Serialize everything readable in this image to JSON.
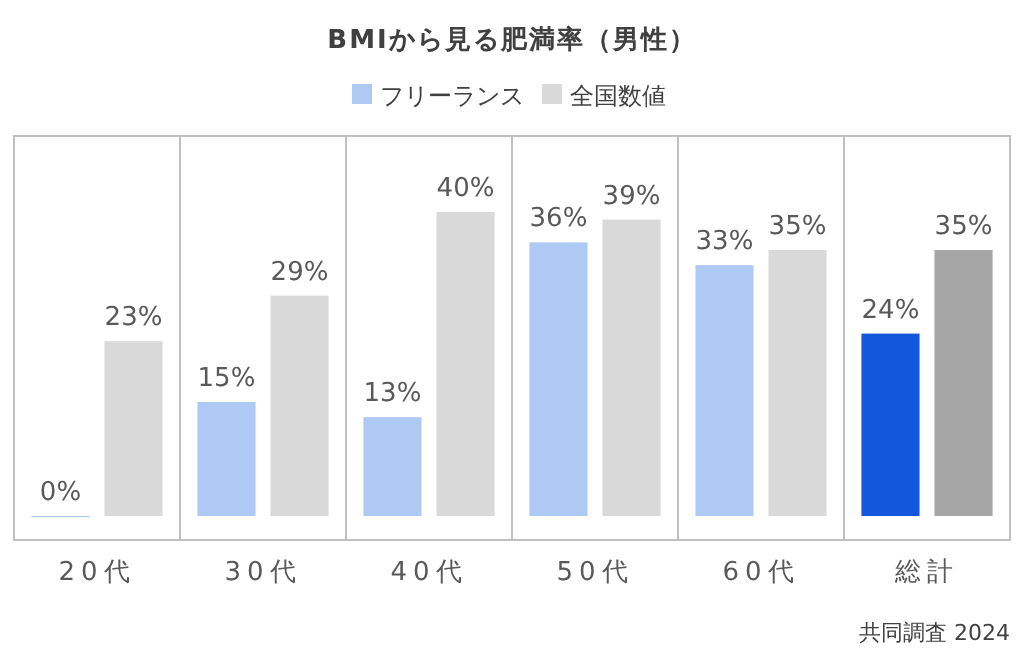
{
  "chart_data": {
    "type": "bar",
    "title": "BMIから見る肥満率（男性）",
    "categories": [
      "20代",
      "30代",
      "40代",
      "50代",
      "60代",
      "総計"
    ],
    "series": [
      {
        "name": "フリーランス",
        "color": "#adc9f4",
        "colors": [
          "#adc9f4",
          "#adc9f4",
          "#adc9f4",
          "#adc9f4",
          "#adc9f4",
          "#1357dd"
        ],
        "values": [
          0,
          15,
          13,
          36,
          33,
          24
        ],
        "value_labels": [
          "0%",
          "15%",
          "13%",
          "36%",
          "33%",
          "24%"
        ]
      },
      {
        "name": "全国数値",
        "color": "#d9d9d9",
        "colors": [
          "#d9d9d9",
          "#d9d9d9",
          "#d9d9d9",
          "#d9d9d9",
          "#d9d9d9",
          "#a6a6a6"
        ],
        "values": [
          23,
          29,
          40,
          39,
          35,
          35
        ],
        "value_labels": [
          "23%",
          "29%",
          "40%",
          "39%",
          "35%",
          "35%"
        ]
      }
    ],
    "grid": "x",
    "legend": "top",
    "annotations": [
      "共同調査 2024"
    ]
  }
}
